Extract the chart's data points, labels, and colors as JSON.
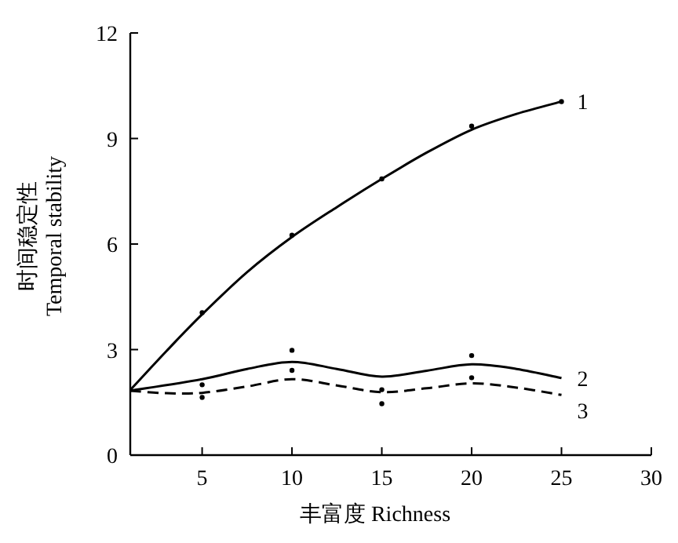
{
  "chart_data": {
    "type": "line",
    "xlabel": "丰富度  Richness",
    "ylabel": "时间稳定性\nTemporal stability",
    "xlim": [
      1,
      30
    ],
    "ylim": [
      0,
      12
    ],
    "xticks": [
      5,
      10,
      15,
      20,
      25,
      30
    ],
    "yticks": [
      0,
      3,
      6,
      9,
      12
    ],
    "series": [
      {
        "name": "1",
        "type": "line",
        "color": "#000000",
        "line_style": "solid",
        "marker": "none",
        "x": [
          1,
          3,
          5,
          7.5,
          10,
          12.5,
          15,
          17.5,
          20,
          22.5,
          25
        ],
        "values": [
          1.85,
          2.95,
          4.0,
          5.2,
          6.2,
          7.05,
          7.85,
          8.6,
          9.25,
          9.7,
          10.05
        ]
      },
      {
        "name": "2",
        "type": "line",
        "color": "#000000",
        "line_style": "solid",
        "marker": "none",
        "x": [
          1,
          5,
          7.5,
          10,
          12.5,
          15,
          17.5,
          20,
          22.5,
          25
        ],
        "values": [
          1.83,
          2.16,
          2.45,
          2.65,
          2.45,
          2.23,
          2.4,
          2.58,
          2.45,
          2.19
        ]
      },
      {
        "name": "3",
        "type": "line",
        "color": "#000000",
        "line_style": "dashed",
        "marker": "none",
        "x": [
          1,
          3,
          5,
          7.5,
          10,
          12.5,
          15,
          17.5,
          20,
          22.5,
          25
        ],
        "values": [
          1.83,
          1.76,
          1.77,
          1.95,
          2.16,
          1.98,
          1.79,
          1.9,
          2.04,
          1.92,
          1.71
        ]
      },
      {
        "type": "scatter",
        "color": "#000000",
        "marker": "circle",
        "x": [
          5,
          10,
          15,
          20,
          25
        ],
        "values": [
          4.05,
          6.25,
          7.85,
          9.35,
          10.05
        ]
      },
      {
        "type": "scatter",
        "color": "#000000",
        "marker": "circle",
        "x": [
          5,
          10,
          15,
          20
        ],
        "values": [
          2.0,
          2.98,
          1.86,
          2.83
        ]
      },
      {
        "type": "scatter",
        "color": "#000000",
        "marker": "circle",
        "x": [
          5,
          10,
          15,
          20
        ],
        "values": [
          1.64,
          2.41,
          1.46,
          2.2
        ]
      }
    ]
  }
}
